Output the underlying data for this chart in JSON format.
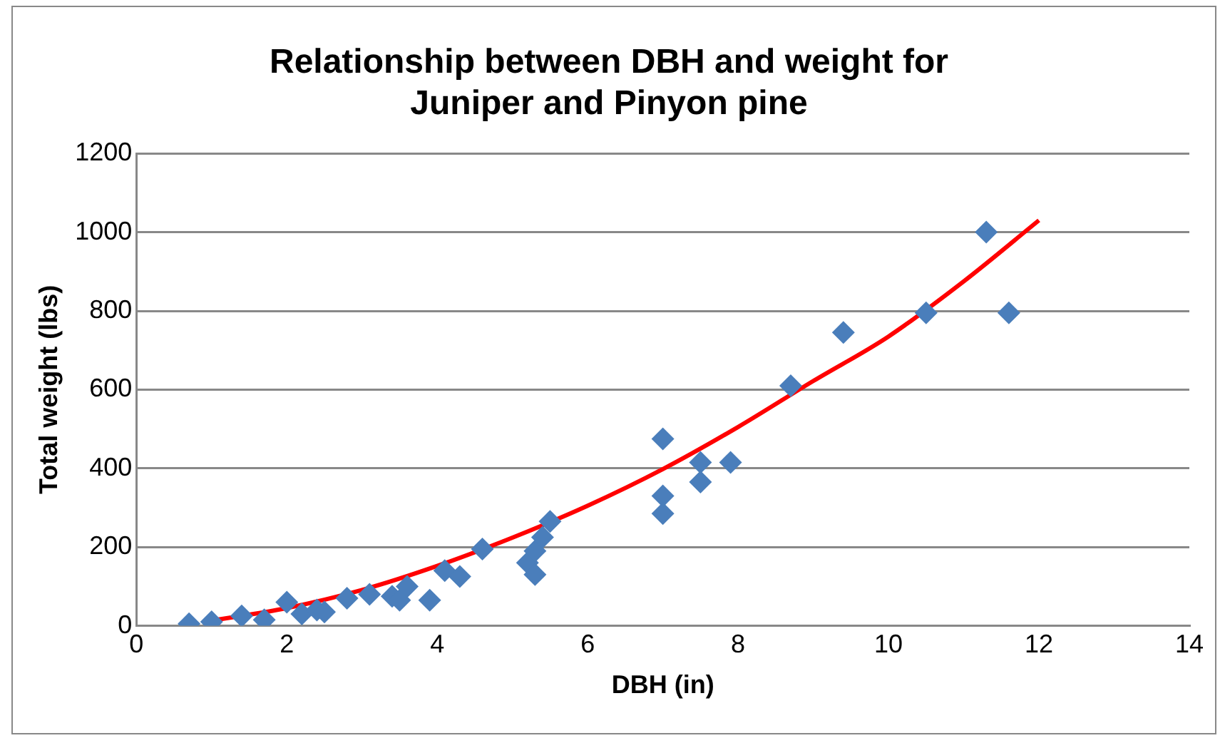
{
  "chart_data": {
    "type": "scatter",
    "title": "Relationship between DBH and weight for Juniper and Pinyon pine",
    "xlabel": "DBH (in)",
    "ylabel": "Total weight (lbs)",
    "xlim": [
      0,
      14
    ],
    "xticks": [
      0,
      2,
      4,
      6,
      8,
      10,
      12,
      14
    ],
    "ylim": [
      0,
      1200
    ],
    "yticks": [
      0,
      200,
      400,
      600,
      800,
      1000,
      1200
    ],
    "grid": "y",
    "legend": false,
    "marker": "diamond",
    "series": [
      {
        "color": "#4a7ebb",
        "x": [
          0.7,
          1.0,
          1.4,
          1.7,
          2.0,
          2.2,
          2.4,
          2.5,
          2.8,
          3.1,
          3.4,
          3.5,
          3.6,
          3.9,
          4.1,
          4.3,
          4.6,
          5.2,
          5.3,
          5.3,
          5.4,
          5.5,
          7.0,
          7.0,
          7.0,
          7.5,
          7.5,
          7.9,
          8.7,
          9.4,
          10.5,
          11.3,
          11.6
        ],
        "values": [
          5,
          10,
          25,
          15,
          60,
          30,
          40,
          35,
          70,
          80,
          75,
          65,
          100,
          65,
          140,
          125,
          195,
          160,
          130,
          190,
          225,
          265,
          475,
          330,
          285,
          415,
          365,
          415,
          610,
          745,
          795,
          1000,
          795
        ]
      },
      {
        "type": "line",
        "color": "#ff0000",
        "marker": "none",
        "x": [
          1,
          2,
          3,
          4,
          5,
          6,
          7,
          8,
          9,
          10,
          11,
          12
        ],
        "values": [
          13,
          45,
          91,
          152,
          224,
          305,
          398,
          505,
          622,
          735,
          875,
          1030
        ]
      }
    ]
  }
}
